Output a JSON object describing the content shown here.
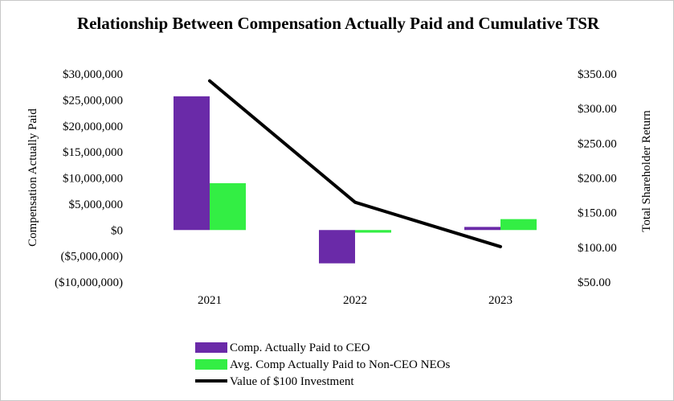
{
  "chart_data": {
    "type": "bar",
    "title": "Relationship Between Compensation Actually Paid and Cumulative TSR",
    "categories": [
      "2021",
      "2022",
      "2023"
    ],
    "series": [
      {
        "name": "Comp. Actually Paid to CEO",
        "kind": "bar",
        "axis": "left",
        "color": "#6a2aa8",
        "values": [
          25700000,
          -6400000,
          600000
        ]
      },
      {
        "name": "Avg. Comp Actually Paid to Non-CEO NEOs",
        "kind": "bar",
        "axis": "left",
        "color": "#33ee44",
        "values": [
          9000000,
          -500000,
          2100000
        ]
      },
      {
        "name": "Value of $100 Investment",
        "kind": "line",
        "axis": "right",
        "color": "#000000",
        "values": [
          340.0,
          165.0,
          101.0
        ]
      }
    ],
    "left_axis": {
      "label": "Compensation Actually Paid",
      "ylim": [
        -10000000,
        30000000
      ],
      "ticks": [
        30000000,
        25000000,
        20000000,
        15000000,
        10000000,
        5000000,
        0,
        -5000000,
        -10000000
      ],
      "tick_labels": [
        "$30,000,000",
        "$25,000,000",
        "$20,000,000",
        "$15,000,000",
        "$10,000,000",
        "$5,000,000",
        "$0",
        "($5,000,000)",
        "($10,000,000)"
      ]
    },
    "right_axis": {
      "label": "Total Shareholder Return",
      "ylim": [
        50,
        350
      ],
      "ticks": [
        350,
        300,
        250,
        200,
        150,
        100,
        50
      ],
      "tick_labels": [
        "$350.00",
        "$300.00",
        "$250.00",
        "$200.00",
        "$150.00",
        "$100.00",
        "$50.00"
      ]
    },
    "grid": false,
    "legend_position": "bottom"
  }
}
